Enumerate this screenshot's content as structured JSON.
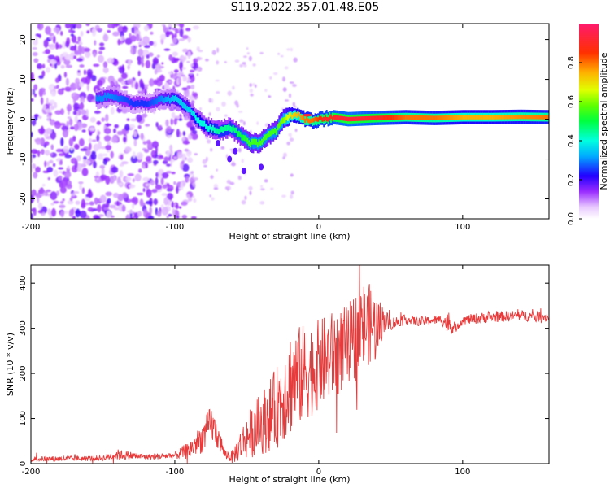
{
  "title": "S119.2022.357.01.48.E05",
  "chart_data": [
    {
      "type": "heatmap",
      "xlabel": "Height of straight line (km)",
      "ylabel": "Frequency (Hz)",
      "xlim": [
        -200,
        160
      ],
      "ylim": [
        -25,
        24
      ],
      "xticks": [
        -200,
        -100,
        0,
        100
      ],
      "yticks": [
        -20,
        -10,
        0,
        10,
        20
      ],
      "colorbar": {
        "label": "Normalized spectral amplitude",
        "range": [
          0,
          1
        ],
        "ticks": [
          "0.0",
          "0.2",
          "0.4",
          "0.6",
          "0.8"
        ],
        "colormap": "gist_rainbow_r"
      },
      "ridge": {
        "x": [
          -155,
          -145,
          -130,
          -120,
          -110,
          -100,
          -92,
          -85,
          -78,
          -70,
          -62,
          -55,
          -48,
          -42,
          -36,
          -30,
          -25,
          -20,
          -15,
          -10,
          -5,
          0,
          10,
          20,
          40,
          60,
          80,
          100,
          120,
          140,
          160
        ],
        "freq": [
          5,
          6,
          4,
          4,
          5,
          5,
          3,
          0,
          -2,
          -3,
          -2,
          -4,
          -6,
          -6,
          -4,
          -3,
          0,
          1,
          1,
          0,
          -0.5,
          0,
          0.5,
          0,
          0.3,
          0.5,
          0.3,
          0.5,
          0.5,
          0.6,
          0.5
        ],
        "amplitude": [
          0.3,
          0.3,
          0.25,
          0.25,
          0.3,
          0.35,
          0.35,
          0.4,
          0.4,
          0.45,
          0.45,
          0.5,
          0.55,
          0.55,
          0.55,
          0.55,
          0.6,
          0.7,
          0.75,
          0.8,
          0.8,
          0.85,
          0.9,
          0.95,
          0.9,
          0.8,
          0.8,
          0.75,
          0.75,
          0.78,
          0.8
        ]
      },
      "noise_region_x": [
        -200,
        -95
      ]
    },
    {
      "type": "line",
      "xlabel": "Height of straight line (km)",
      "ylabel": "SNR (10 * v/v)",
      "xlim": [
        -200,
        160
      ],
      "ylim": [
        0,
        440
      ],
      "xticks": [
        -200,
        -100,
        0,
        100
      ],
      "yticks": [
        0,
        100,
        200,
        300,
        400
      ],
      "color": "#e83a3a",
      "envelope": {
        "x": [
          -200,
          -150,
          -140,
          -120,
          -100,
          -90,
          -80,
          -75,
          -70,
          -65,
          -60,
          -50,
          -40,
          -30,
          -20,
          -10,
          0,
          10,
          20,
          25,
          30,
          35,
          40,
          45,
          50,
          60,
          70,
          80,
          85,
          90,
          95,
          100,
          110,
          120,
          140,
          160
        ],
        "mean": [
          10,
          12,
          20,
          15,
          18,
          30,
          60,
          90,
          60,
          20,
          15,
          60,
          90,
          120,
          180,
          200,
          220,
          240,
          260,
          280,
          300,
          310,
          300,
          320,
          310,
          320,
          315,
          318,
          320,
          310,
          300,
          318,
          322,
          325,
          328,
          325
        ],
        "spread": [
          6,
          6,
          12,
          6,
          8,
          20,
          35,
          40,
          30,
          10,
          15,
          50,
          70,
          90,
          120,
          110,
          100,
          100,
          90,
          100,
          110,
          90,
          80,
          30,
          15,
          10,
          10,
          10,
          10,
          25,
          10,
          10,
          12,
          12,
          12,
          12
        ]
      }
    }
  ]
}
